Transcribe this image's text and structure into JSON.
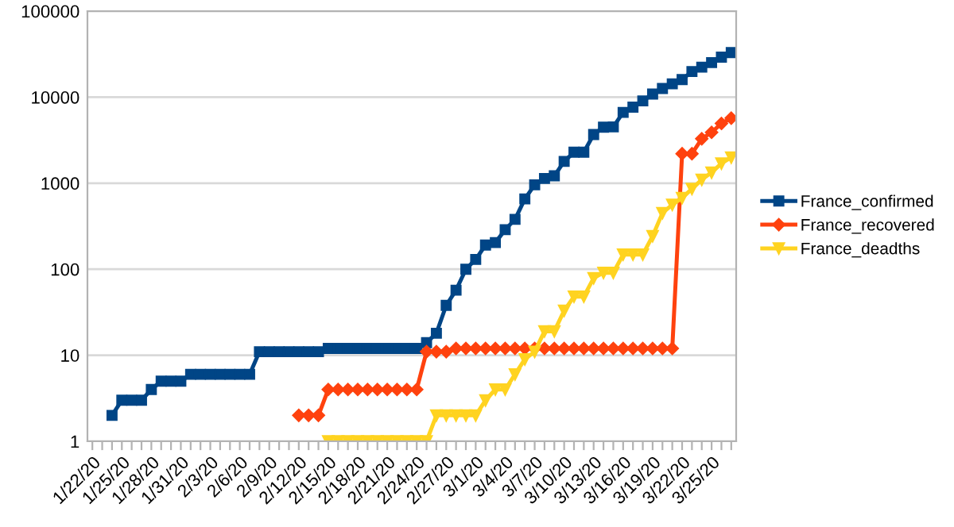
{
  "chart_data": {
    "type": "line",
    "categories": [
      "1/22/20",
      null,
      null,
      "1/25/20",
      null,
      null,
      "1/28/20",
      null,
      null,
      "1/31/20",
      null,
      null,
      "2/3/20",
      null,
      null,
      "2/6/20",
      null,
      null,
      "2/9/20",
      null,
      null,
      "2/12/20",
      null,
      null,
      "2/15/20",
      null,
      null,
      "2/18/20",
      null,
      null,
      "2/21/20",
      null,
      null,
      "2/24/20",
      null,
      null,
      "2/27/20",
      null,
      null,
      "3/1/20",
      null,
      null,
      "3/4/20",
      null,
      null,
      "3/7/20",
      null,
      null,
      "3/10/20",
      null,
      null,
      "3/13/20",
      null,
      null,
      "3/16/20",
      null,
      null,
      "3/19/20",
      null,
      null,
      "3/22/20",
      null,
      null,
      "3/25/20",
      null,
      null
    ],
    "series": [
      {
        "name": "France_confirmed",
        "color": "#004586",
        "marker": "square",
        "values": [
          null,
          null,
          2,
          3,
          3,
          3,
          4,
          5,
          5,
          5,
          6,
          6,
          6,
          6,
          6,
          6,
          6,
          11,
          11,
          11,
          11,
          11,
          11,
          11,
          12,
          12,
          12,
          12,
          12,
          12,
          12,
          12,
          12,
          12,
          14,
          18,
          38,
          57,
          100,
          130,
          191,
          204,
          288,
          380,
          656,
          957,
          1134,
          1217,
          1792,
          2289,
          2289,
          3672,
          4480,
          4513,
          6650,
          7652,
          9043,
          10871,
          12612,
          14282,
          16018,
          19856,
          22304,
          25233,
          29155,
          32964
        ]
      },
      {
        "name": "France_recovered",
        "color": "#ff420e",
        "marker": "diamond",
        "values": [
          null,
          null,
          null,
          null,
          null,
          null,
          null,
          null,
          null,
          null,
          null,
          null,
          null,
          null,
          null,
          null,
          null,
          null,
          null,
          null,
          null,
          2,
          2,
          2,
          4,
          4,
          4,
          4,
          4,
          4,
          4,
          4,
          4,
          4,
          11,
          11,
          11,
          12,
          12,
          12,
          12,
          12,
          12,
          12,
          12,
          12,
          12,
          12,
          12,
          12,
          12,
          12,
          12,
          12,
          12,
          12,
          12,
          12,
          12,
          12,
          2200,
          2200,
          3281,
          3900,
          4948,
          5700
        ]
      },
      {
        "name": "France_deadths",
        "color": "#ffd320",
        "marker": "triangle",
        "values": [
          null,
          null,
          null,
          null,
          null,
          null,
          null,
          null,
          null,
          null,
          null,
          null,
          null,
          null,
          null,
          null,
          null,
          null,
          null,
          null,
          null,
          null,
          null,
          null,
          1,
          1,
          1,
          1,
          1,
          1,
          1,
          1,
          1,
          1,
          1,
          2,
          2,
          2,
          2,
          2,
          3,
          4,
          4,
          6,
          9,
          11,
          19,
          19,
          33,
          48,
          48,
          79,
          91,
          91,
          148,
          148,
          148,
          243,
          450,
          562,
          674,
          860,
          1100,
          1331,
          1696,
          1995
        ]
      }
    ],
    "log": "y",
    "ylim": [
      1,
      100000
    ],
    "yticks": [
      1,
      10,
      100,
      1000,
      10000,
      100000
    ],
    "grid": "y",
    "legend": "right",
    "line_style": "solid"
  }
}
